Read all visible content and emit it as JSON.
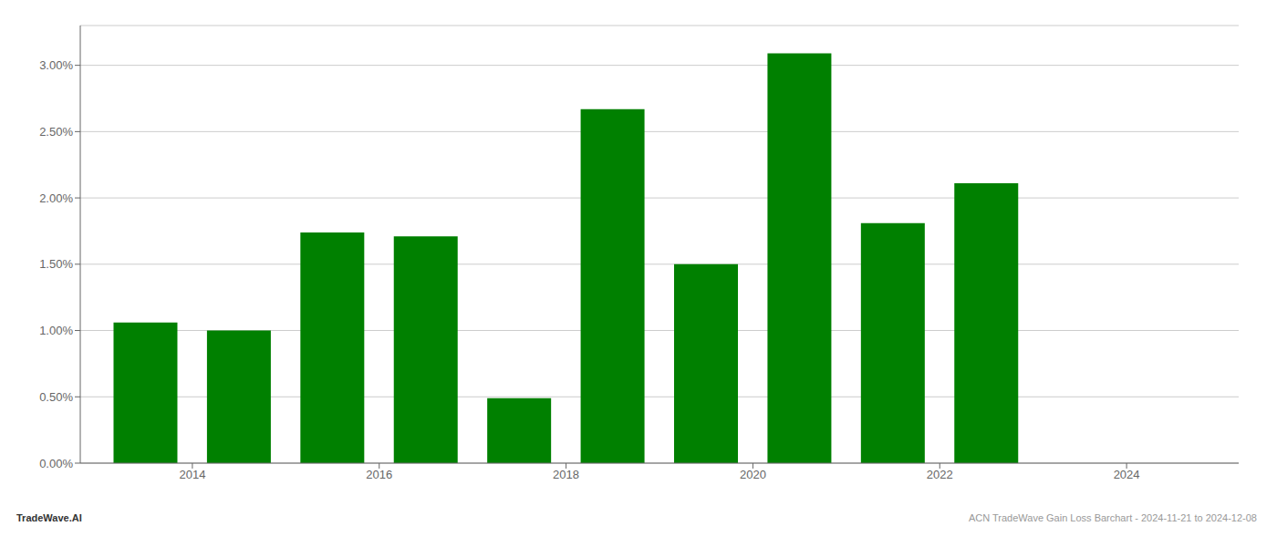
{
  "chart_data": {
    "type": "bar",
    "x": [
      2013,
      2014,
      2015,
      2016,
      2017,
      2018,
      2019,
      2020,
      2021,
      2022,
      2023
    ],
    "values": [
      0.0106,
      0.01,
      0.0174,
      0.0171,
      0.0049,
      0.0267,
      0.015,
      0.0309,
      0.0181,
      0.0211,
      0.0
    ],
    "color": "#008000",
    "xlim": [
      2012.3,
      2024.7
    ],
    "xticks": [
      {
        "value": 2013.5,
        "label": "2014"
      },
      {
        "value": 2015.5,
        "label": "2016"
      },
      {
        "value": 2017.5,
        "label": "2018"
      },
      {
        "value": 2019.5,
        "label": "2020"
      },
      {
        "value": 2021.5,
        "label": "2022"
      },
      {
        "value": 2023.5,
        "label": "2024"
      }
    ],
    "ylim": [
      0,
      0.033
    ],
    "yticks": [
      {
        "value": 0.0,
        "label": "0.00%"
      },
      {
        "value": 0.005,
        "label": "0.50%"
      },
      {
        "value": 0.01,
        "label": "1.00%"
      },
      {
        "value": 0.015,
        "label": "1.50%"
      },
      {
        "value": 0.02,
        "label": "2.00%"
      },
      {
        "value": 0.025,
        "label": "2.50%"
      },
      {
        "value": 0.03,
        "label": "3.00%"
      }
    ],
    "grid": true,
    "annotations": [
      "TradeWave.AI",
      "ACN TradeWave Gain Loss Barchart - 2024-11-21 to 2024-12-08"
    ]
  }
}
